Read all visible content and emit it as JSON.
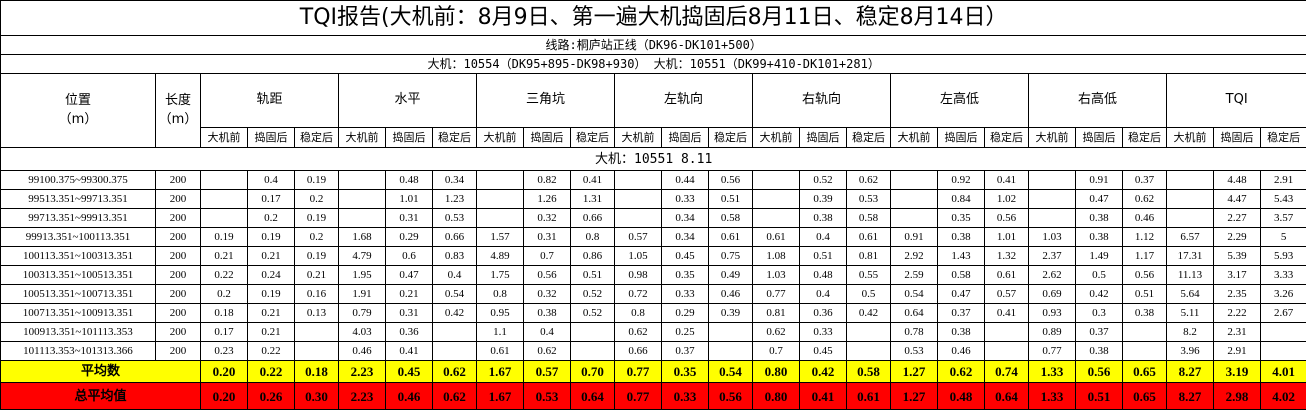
{
  "title": "TQI报告(大机前：8月9日、第一遍大机捣固后8月11日、稳定8月14日）",
  "line": "线路:桐庐站正线（DK96-DK101+500）",
  "machines": "大机：10554（DK95+895-DK98+930）    大机：10551（DK99+410-DK101+281）",
  "header": {
    "position": "位置\n（m）",
    "length": "长度\n（m）",
    "groups": [
      "轨距",
      "水平",
      "三角坑",
      "左轨向",
      "右轨向",
      "左高低",
      "右高低",
      "TQI"
    ],
    "subs": [
      "大机前",
      "捣固后",
      "稳定后"
    ]
  },
  "section": "大机：10551    8.11",
  "rows": [
    [
      "99100.375~99300.375",
      "200",
      null,
      "0.4",
      "0.19",
      null,
      "0.48",
      "0.34",
      null,
      "0.82",
      "0.41",
      null,
      "0.44",
      "0.56",
      null,
      "0.52",
      "0.62",
      null,
      "0.92",
      "0.41",
      null,
      "0.91",
      "0.37",
      null,
      "4.48",
      "2.91"
    ],
    [
      "99513.351~99713.351",
      "200",
      null,
      "0.17",
      "0.2",
      null,
      "1.01",
      "1.23",
      null,
      "1.26",
      "1.31",
      null,
      "0.33",
      "0.51",
      null,
      "0.39",
      "0.53",
      null,
      "0.84",
      "1.02",
      null,
      "0.47",
      "0.62",
      null,
      "4.47",
      "5.43"
    ],
    [
      "99713.351~99913.351",
      "200",
      null,
      "0.2",
      "0.19",
      null,
      "0.31",
      "0.53",
      null,
      "0.32",
      "0.66",
      null,
      "0.34",
      "0.58",
      null,
      "0.38",
      "0.58",
      null,
      "0.35",
      "0.56",
      null,
      "0.38",
      "0.46",
      null,
      "2.27",
      "3.57"
    ],
    [
      "99913.351~100113.351",
      "200",
      "0.19",
      "0.19",
      "0.2",
      "1.68",
      "0.29",
      "0.66",
      "1.57",
      "0.31",
      "0.8",
      "0.57",
      "0.34",
      "0.61",
      "0.61",
      "0.4",
      "0.61",
      "0.91",
      "0.38",
      "1.01",
      "1.03",
      "0.38",
      "1.12",
      "6.57",
      "2.29",
      "5"
    ],
    [
      "100113.351~100313.351",
      "200",
      "0.21",
      "0.21",
      "0.19",
      "4.79",
      "0.6",
      "0.83",
      "4.89",
      "0.7",
      "0.86",
      "1.05",
      "0.45",
      "0.75",
      "1.08",
      "0.51",
      "0.81",
      "2.92",
      "1.43",
      "1.32",
      "2.37",
      "1.49",
      "1.17",
      "17.31",
      "5.39",
      "5.93"
    ],
    [
      "100313.351~100513.351",
      "200",
      "0.22",
      "0.24",
      "0.21",
      "1.95",
      "0.47",
      "0.4",
      "1.75",
      "0.56",
      "0.51",
      "0.98",
      "0.35",
      "0.49",
      "1.03",
      "0.48",
      "0.55",
      "2.59",
      "0.58",
      "0.61",
      "2.62",
      "0.5",
      "0.56",
      "11.13",
      "3.17",
      "3.33"
    ],
    [
      "100513.351~100713.351",
      "200",
      "0.2",
      "0.19",
      "0.16",
      "1.91",
      "0.21",
      "0.54",
      "0.8",
      "0.32",
      "0.52",
      "0.72",
      "0.33",
      "0.46",
      "0.77",
      "0.4",
      "0.5",
      "0.54",
      "0.47",
      "0.57",
      "0.69",
      "0.42",
      "0.51",
      "5.64",
      "2.35",
      "3.26"
    ],
    [
      "100713.351~100913.351",
      "200",
      "0.18",
      "0.21",
      "0.13",
      "0.79",
      "0.31",
      "0.42",
      "0.95",
      "0.38",
      "0.52",
      "0.8",
      "0.29",
      "0.39",
      "0.81",
      "0.36",
      "0.42",
      "0.64",
      "0.37",
      "0.41",
      "0.93",
      "0.3",
      "0.38",
      "5.11",
      "2.22",
      "2.67"
    ],
    [
      "100913.351~101113.353",
      "200",
      "0.17",
      "0.21",
      null,
      "4.03",
      "0.36",
      null,
      "1.1",
      "0.4",
      null,
      "0.62",
      "0.25",
      null,
      "0.62",
      "0.33",
      null,
      "0.78",
      "0.38",
      null,
      "0.89",
      "0.37",
      null,
      "8.2",
      "2.31",
      null
    ],
    [
      "101113.353~101313.366",
      "200",
      "0.23",
      "0.22",
      null,
      "0.46",
      "0.41",
      null,
      "0.61",
      "0.62",
      null,
      "0.66",
      "0.37",
      null,
      "0.7",
      "0.45",
      null,
      "0.53",
      "0.46",
      null,
      "0.77",
      "0.38",
      null,
      "3.96",
      "2.91",
      null
    ]
  ],
  "average": {
    "label": "平均数",
    "values": [
      "0.20",
      "0.22",
      "0.18",
      "2.23",
      "0.45",
      "0.62",
      "1.67",
      "0.57",
      "0.70",
      "0.77",
      "0.35",
      "0.54",
      "0.80",
      "0.42",
      "0.58",
      "1.27",
      "0.62",
      "0.74",
      "1.33",
      "0.56",
      "0.65",
      "8.27",
      "3.19",
      "4.01"
    ]
  },
  "total": {
    "label": "总平均值",
    "values": [
      "0.20",
      "0.26",
      "0.30",
      "2.23",
      "0.46",
      "0.62",
      "1.67",
      "0.53",
      "0.64",
      "0.77",
      "0.33",
      "0.56",
      "0.80",
      "0.41",
      "0.61",
      "1.27",
      "0.48",
      "0.64",
      "1.33",
      "0.51",
      "0.65",
      "8.27",
      "2.98",
      "4.02"
    ]
  }
}
